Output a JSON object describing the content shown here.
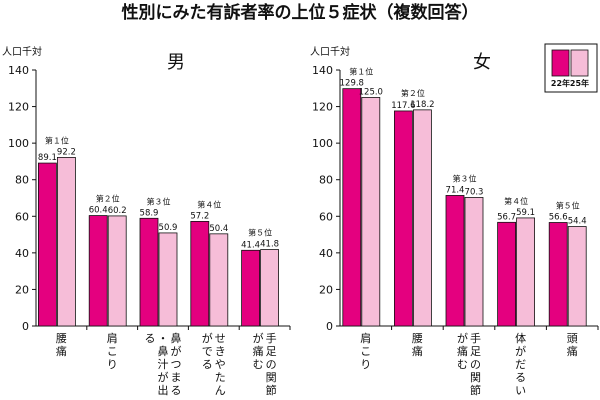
{
  "title": "性別にみた有訴者率の上位５症状（複数回答）",
  "colors": {
    "y22": "#e4007f",
    "y25": "#f6bdd8",
    "stroke": "#111111"
  },
  "legend": {
    "items": [
      {
        "key": "y22",
        "label": "22年"
      },
      {
        "key": "y25",
        "label": "25年"
      }
    ]
  },
  "chart_data": [
    {
      "type": "bar",
      "title": "男",
      "ylabel": "人口千対",
      "ylim": [
        0,
        140
      ],
      "yticks": [
        0,
        20,
        40,
        60,
        80,
        100,
        120,
        140
      ],
      "categories": [
        "腰痛",
        "肩こり",
        "鼻がつまる・鼻汁が出る",
        "せきやたんがでる",
        "手足の関節が痛む"
      ],
      "ranks": [
        "第１位",
        "第２位",
        "第３位",
        "第４位",
        "第５位"
      ],
      "series": [
        {
          "name": "22年",
          "values": [
            89.1,
            60.4,
            58.9,
            57.2,
            41.4
          ]
        },
        {
          "name": "25年",
          "values": [
            92.2,
            60.2,
            50.9,
            50.4,
            41.8
          ]
        }
      ],
      "grid": false
    },
    {
      "type": "bar",
      "title": "女",
      "ylabel": "人口千対",
      "ylim": [
        0,
        140
      ],
      "yticks": [
        0,
        20,
        40,
        60,
        80,
        100,
        120,
        140
      ],
      "categories": [
        "肩こり",
        "腰痛",
        "手足の関節が痛む",
        "体がだるい",
        "頭痛"
      ],
      "ranks": [
        "第１位",
        "第２位",
        "第３位",
        "第４位",
        "第５位"
      ],
      "series": [
        {
          "name": "22年",
          "values": [
            129.8,
            117.6,
            71.4,
            56.7,
            56.6
          ]
        },
        {
          "name": "25年",
          "values": [
            125.0,
            118.2,
            70.3,
            59.1,
            54.4
          ]
        }
      ],
      "grid": false
    }
  ]
}
